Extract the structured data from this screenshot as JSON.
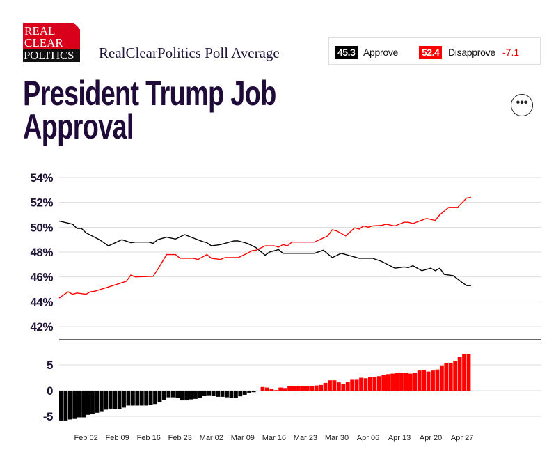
{
  "header": {
    "logo_text": [
      "REAL",
      "CLEAR",
      "POLITICS"
    ],
    "subtitle": "RealClearPolitics Poll Average",
    "more_button": "•••"
  },
  "legend": {
    "approve_value": "45.3",
    "approve_label": "Approve",
    "disapprove_value": "52.4",
    "disapprove_label": "Disapprove",
    "spread": "-7.1"
  },
  "title": {
    "line1": "President Trump Job",
    "line2": "Approval"
  },
  "colors": {
    "approve": "#000000",
    "disapprove": "#ff0000",
    "title": "#1f0a3a",
    "logo_red": "#d9001b"
  },
  "chart_data": [
    {
      "type": "line",
      "ylim": [
        41,
        54
      ],
      "yticks": [
        "54%",
        "52%",
        "50%",
        "48%",
        "46%",
        "44%",
        "42%"
      ],
      "ytick_values": [
        54,
        52,
        50,
        48,
        46,
        44,
        42
      ],
      "grid": true,
      "series": [
        {
          "name": "Approve",
          "color": "#000000",
          "points": [
            [
              "Jan 27",
              50.5
            ],
            [
              "Jan 30",
              50.25
            ],
            [
              "Jan 31",
              49.9
            ],
            [
              "Feb 01",
              49.9
            ],
            [
              "Feb 02",
              49.55
            ],
            [
              "Feb 05",
              49.0
            ],
            [
              "Feb 07",
              48.5
            ],
            [
              "Feb 10",
              49.0
            ],
            [
              "Feb 12",
              48.75
            ],
            [
              "Feb 13",
              48.8
            ],
            [
              "Feb 16",
              48.8
            ],
            [
              "Feb 17",
              48.7
            ],
            [
              "Feb 18",
              49.0
            ],
            [
              "Feb 20",
              49.2
            ],
            [
              "Feb 22",
              49.05
            ],
            [
              "Feb 24",
              49.4
            ],
            [
              "Feb 28",
              48.85
            ],
            [
              "Mar 01",
              48.75
            ],
            [
              "Mar 02",
              48.5
            ],
            [
              "Mar 04",
              48.6
            ],
            [
              "Mar 07",
              48.9
            ],
            [
              "Mar 08",
              48.9
            ],
            [
              "Mar 10",
              48.7
            ],
            [
              "Mar 12",
              48.35
            ],
            [
              "Mar 14",
              47.75
            ],
            [
              "Mar 15",
              48.0
            ],
            [
              "Mar 17",
              48.2
            ],
            [
              "Mar 18",
              47.9
            ],
            [
              "Mar 25",
              47.9
            ],
            [
              "Mar 27",
              48.15
            ],
            [
              "Mar 29",
              47.55
            ],
            [
              "Mar 31",
              47.9
            ],
            [
              "Apr 04",
              47.5
            ],
            [
              "Apr 07",
              47.5
            ],
            [
              "Apr 09",
              47.25
            ],
            [
              "Apr 12",
              46.7
            ],
            [
              "Apr 14",
              46.8
            ],
            [
              "Apr 15",
              46.75
            ],
            [
              "Apr 16",
              46.9
            ],
            [
              "Apr 18",
              46.5
            ],
            [
              "Apr 20",
              46.7
            ],
            [
              "Apr 21",
              46.5
            ],
            [
              "Apr 22",
              46.7
            ],
            [
              "Apr 23",
              46.2
            ],
            [
              "Apr 25",
              46.1
            ],
            [
              "Apr 27",
              45.55
            ],
            [
              "Apr 28",
              45.3
            ],
            [
              "Apr 29",
              45.3
            ]
          ]
        },
        {
          "name": "Disapprove",
          "color": "#ff0000",
          "points": [
            [
              "Jan 27",
              44.3
            ],
            [
              "Jan 29",
              44.8
            ],
            [
              "Jan 30",
              44.6
            ],
            [
              "Jan 31",
              44.7
            ],
            [
              "Feb 02",
              44.6
            ],
            [
              "Feb 03",
              44.8
            ],
            [
              "Feb 04",
              44.85
            ],
            [
              "Feb 08",
              45.3
            ],
            [
              "Feb 11",
              45.65
            ],
            [
              "Feb 12",
              46.15
            ],
            [
              "Feb 13",
              46.0
            ],
            [
              "Feb 17",
              46.05
            ],
            [
              "Feb 18",
              46.6
            ],
            [
              "Feb 20",
              47.8
            ],
            [
              "Feb 22",
              47.8
            ],
            [
              "Feb 23",
              47.5
            ],
            [
              "Feb 26",
              47.5
            ],
            [
              "Feb 27",
              47.4
            ],
            [
              "Mar 01",
              47.8
            ],
            [
              "Mar 02",
              47.5
            ],
            [
              "Mar 04",
              47.4
            ],
            [
              "Mar 05",
              47.55
            ],
            [
              "Mar 08",
              47.55
            ],
            [
              "Mar 10",
              47.9
            ],
            [
              "Mar 11",
              48.1
            ],
            [
              "Mar 12",
              48.15
            ],
            [
              "Mar 14",
              48.5
            ],
            [
              "Mar 16",
              48.5
            ],
            [
              "Mar 17",
              48.4
            ],
            [
              "Mar 18",
              48.6
            ],
            [
              "Mar 19",
              48.5
            ],
            [
              "Mar 20",
              48.8
            ],
            [
              "Mar 25",
              48.8
            ],
            [
              "Mar 28",
              49.3
            ],
            [
              "Mar 29",
              49.8
            ],
            [
              "Mar 30",
              49.7
            ],
            [
              "Apr 01",
              49.3
            ],
            [
              "Apr 03",
              49.95
            ],
            [
              "Apr 04",
              49.85
            ],
            [
              "Apr 05",
              50.1
            ],
            [
              "Apr 06",
              50.0
            ],
            [
              "Apr 07",
              50.1
            ],
            [
              "Apr 09",
              50.15
            ],
            [
              "Apr 10",
              50.25
            ],
            [
              "Apr 12",
              50.1
            ],
            [
              "Apr 14",
              50.4
            ],
            [
              "Apr 15",
              50.4
            ],
            [
              "Apr 16",
              50.3
            ],
            [
              "Apr 19",
              50.7
            ],
            [
              "Apr 21",
              50.55
            ],
            [
              "Apr 22",
              51.0
            ],
            [
              "Apr 24",
              51.6
            ],
            [
              "Apr 26",
              51.6
            ],
            [
              "Apr 28",
              52.35
            ],
            [
              "Apr 29",
              52.4
            ]
          ]
        }
      ]
    },
    {
      "type": "bar",
      "ylim": [
        -6.5,
        8
      ],
      "yticks": [
        "5",
        "0",
        "-5"
      ],
      "ytick_values": [
        5,
        0,
        -5
      ],
      "grid": true,
      "positive_color": "#ff0000",
      "negative_color": "#000000",
      "bars": [
        [
          "Jan 27",
          -5.8
        ],
        [
          "Jan 28",
          -5.8
        ],
        [
          "Jan 29",
          -5.6
        ],
        [
          "Jan 30",
          -5.5
        ],
        [
          "Jan 31",
          -5.2
        ],
        [
          "Feb 01",
          -5.2
        ],
        [
          "Feb 02",
          -4.7
        ],
        [
          "Feb 03",
          -4.6
        ],
        [
          "Feb 04",
          -4.3
        ],
        [
          "Feb 05",
          -4.0
        ],
        [
          "Feb 06",
          -3.7
        ],
        [
          "Feb 07",
          -3.5
        ],
        [
          "Feb 08",
          -3.6
        ],
        [
          "Feb 09",
          -3.6
        ],
        [
          "Feb 10",
          -3.3
        ],
        [
          "Feb 11",
          -2.9
        ],
        [
          "Feb 12",
          -2.9
        ],
        [
          "Feb 13",
          -2.9
        ],
        [
          "Feb 14",
          -2.9
        ],
        [
          "Feb 15",
          -2.9
        ],
        [
          "Feb 16",
          -2.8
        ],
        [
          "Feb 17",
          -2.6
        ],
        [
          "Feb 18",
          -2.3
        ],
        [
          "Feb 19",
          -1.8
        ],
        [
          "Feb 20",
          -1.3
        ],
        [
          "Feb 21",
          -1.3
        ],
        [
          "Feb 22",
          -1.4
        ],
        [
          "Feb 23",
          -1.9
        ],
        [
          "Feb 24",
          -1.9
        ],
        [
          "Feb 25",
          -1.7
        ],
        [
          "Feb 26",
          -1.6
        ],
        [
          "Feb 27",
          -1.4
        ],
        [
          "Feb 28",
          -1.0
        ],
        [
          "Mar 01",
          -0.9
        ],
        [
          "Mar 02",
          -1.0
        ],
        [
          "Mar 03",
          -1.2
        ],
        [
          "Mar 04",
          -1.2
        ],
        [
          "Mar 05",
          -1.3
        ],
        [
          "Mar 06",
          -1.4
        ],
        [
          "Mar 07",
          -1.4
        ],
        [
          "Mar 08",
          -1.1
        ],
        [
          "Mar 09",
          -0.8
        ],
        [
          "Mar 10",
          -0.4
        ],
        [
          "Mar 11",
          -0.3
        ],
        [
          "Mar 12",
          -0.1
        ],
        [
          "Mar 13",
          0.7
        ],
        [
          "Mar 14",
          0.6
        ],
        [
          "Mar 15",
          0.4
        ],
        [
          "Mar 16",
          0.1
        ],
        [
          "Mar 17",
          0.6
        ],
        [
          "Mar 18",
          0.5
        ],
        [
          "Mar 19",
          0.9
        ],
        [
          "Mar 20",
          0.9
        ],
        [
          "Mar 21",
          0.9
        ],
        [
          "Mar 22",
          0.9
        ],
        [
          "Mar 23",
          0.9
        ],
        [
          "Mar 24",
          0.9
        ],
        [
          "Mar 25",
          1.0
        ],
        [
          "Mar 26",
          1.1
        ],
        [
          "Mar 27",
          1.5
        ],
        [
          "Mar 28",
          2.0
        ],
        [
          "Mar 29",
          2.0
        ],
        [
          "Mar 30",
          1.6
        ],
        [
          "Mar 31",
          1.3
        ],
        [
          "Apr 01",
          1.7
        ],
        [
          "Apr 02",
          2.1
        ],
        [
          "Apr 03",
          2.1
        ],
        [
          "Apr 04",
          2.5
        ],
        [
          "Apr 05",
          2.4
        ],
        [
          "Apr 06",
          2.6
        ],
        [
          "Apr 07",
          2.7
        ],
        [
          "Apr 08",
          2.8
        ],
        [
          "Apr 09",
          3.0
        ],
        [
          "Apr 10",
          3.2
        ],
        [
          "Apr 11",
          3.3
        ],
        [
          "Apr 12",
          3.4
        ],
        [
          "Apr 13",
          3.5
        ],
        [
          "Apr 14",
          3.5
        ],
        [
          "Apr 15",
          3.3
        ],
        [
          "Apr 16",
          3.5
        ],
        [
          "Apr 17",
          3.9
        ],
        [
          "Apr 18",
          4.0
        ],
        [
          "Apr 19",
          3.7
        ],
        [
          "Apr 20",
          3.9
        ],
        [
          "Apr 21",
          4.1
        ],
        [
          "Apr 22",
          4.9
        ],
        [
          "Apr 23",
          5.4
        ],
        [
          "Apr 24",
          5.4
        ],
        [
          "Apr 25",
          5.8
        ],
        [
          "Apr 26",
          6.5
        ],
        [
          "Apr 27",
          7.1
        ],
        [
          "Apr 28",
          7.1
        ]
      ]
    }
  ],
  "x_axis": {
    "xlim": [
      "Jan 27",
      "Apr 29"
    ],
    "ticks": [
      "Feb 02",
      "Feb 09",
      "Feb 16",
      "Feb 23",
      "Mar 02",
      "Mar 09",
      "Mar 16",
      "Mar 23",
      "Mar 30",
      "Apr 06",
      "Apr 13",
      "Apr 20",
      "Apr 27"
    ]
  }
}
